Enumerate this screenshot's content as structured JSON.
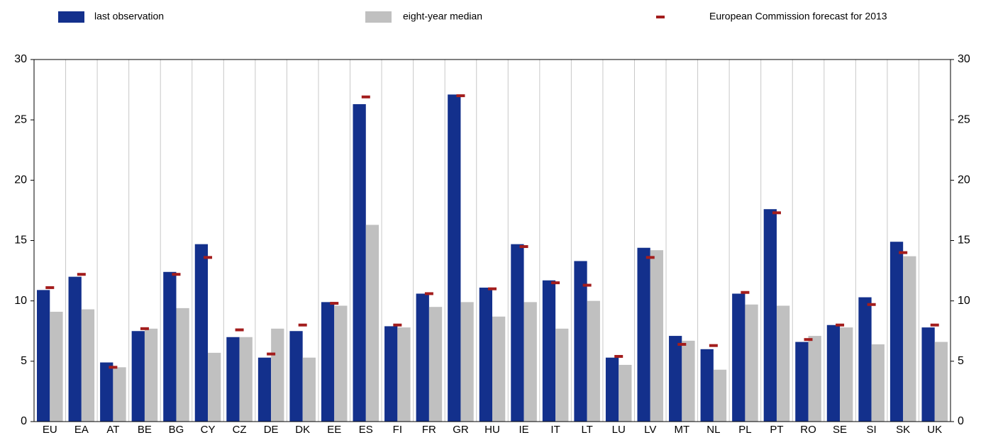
{
  "chart_data": {
    "type": "bar",
    "categories": [
      "EU",
      "EA",
      "AT",
      "BE",
      "BG",
      "CY",
      "CZ",
      "DE",
      "DK",
      "EE",
      "ES",
      "FI",
      "FR",
      "GR",
      "HU",
      "IE",
      "IT",
      "LT",
      "LU",
      "LV",
      "MT",
      "NL",
      "PL",
      "PT",
      "RO",
      "SE",
      "SI",
      "SK",
      "UK"
    ],
    "series": [
      {
        "name": "last observation",
        "color": "#13308c",
        "values": [
          10.9,
          12.0,
          4.9,
          7.5,
          12.4,
          14.7,
          7.0,
          5.3,
          7.5,
          9.9,
          26.3,
          7.9,
          10.6,
          27.1,
          11.1,
          14.7,
          11.7,
          13.3,
          5.3,
          14.4,
          7.1,
          6.0,
          10.6,
          17.6,
          6.6,
          8.0,
          10.3,
          14.9,
          7.8
        ]
      },
      {
        "name": "eight-year median",
        "color": "#c0c0c0",
        "values": [
          9.1,
          9.3,
          4.5,
          7.7,
          9.4,
          5.7,
          7.0,
          7.7,
          5.3,
          9.6,
          16.3,
          7.8,
          9.5,
          9.9,
          8.7,
          9.9,
          7.7,
          10.0,
          4.7,
          14.2,
          6.7,
          4.3,
          9.7,
          9.6,
          7.1,
          7.8,
          6.4,
          13.7,
          6.6
        ]
      },
      {
        "name": "European Commission forecast for 2013",
        "color": "#a31d1d",
        "marker": "dash",
        "values": [
          11.1,
          12.2,
          4.5,
          7.7,
          12.2,
          13.6,
          7.6,
          5.6,
          8.0,
          9.8,
          26.9,
          8.0,
          10.6,
          27.0,
          11.0,
          14.5,
          11.5,
          11.3,
          5.4,
          13.6,
          6.4,
          6.3,
          10.7,
          17.3,
          6.8,
          8.0,
          9.7,
          14.0,
          8.0
        ]
      }
    ],
    "ylim": [
      0,
      30
    ],
    "yticks": [
      0,
      5,
      10,
      15,
      20,
      25,
      30
    ]
  }
}
